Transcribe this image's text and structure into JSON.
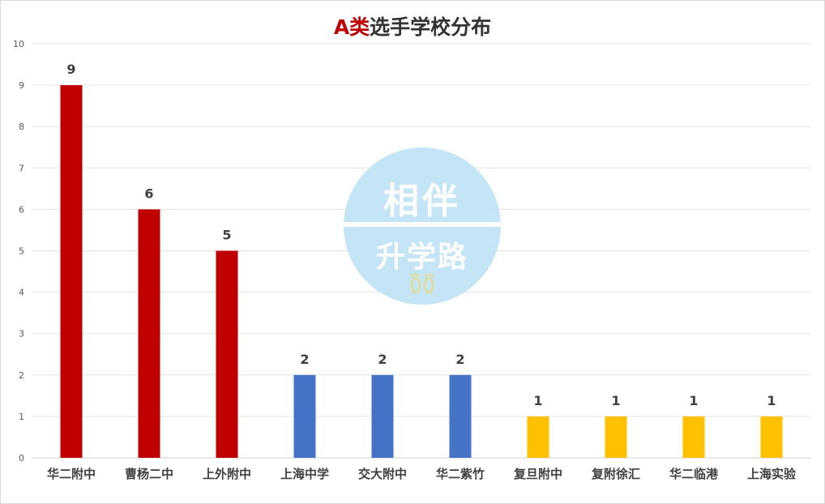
{
  "chart_data": {
    "type": "bar",
    "title_prefix": "A类",
    "title_suffix": "选手学校分布",
    "categories": [
      "华二附中",
      "曹杨二中",
      "上外附中",
      "上海中学",
      "交大附中",
      "华二紫竹",
      "复旦附中",
      "复附徐汇",
      "华二临港",
      "上海实验"
    ],
    "values": [
      9,
      6,
      5,
      2,
      2,
      2,
      1,
      1,
      1,
      1
    ],
    "bar_colors": [
      "#c00000",
      "#c00000",
      "#c00000",
      "#4472c4",
      "#4472c4",
      "#4472c4",
      "#ffc000",
      "#ffc000",
      "#ffc000",
      "#ffc000"
    ],
    "ylim": [
      0,
      10
    ],
    "yticks": [
      0,
      1,
      2,
      3,
      4,
      5,
      6,
      7,
      8,
      9,
      10
    ],
    "grid": true,
    "data_labels": true,
    "xlabel": "",
    "ylabel": ""
  },
  "watermark": {
    "line1": "相伴",
    "line2": "升学路",
    "icon": "footprints-icon"
  }
}
